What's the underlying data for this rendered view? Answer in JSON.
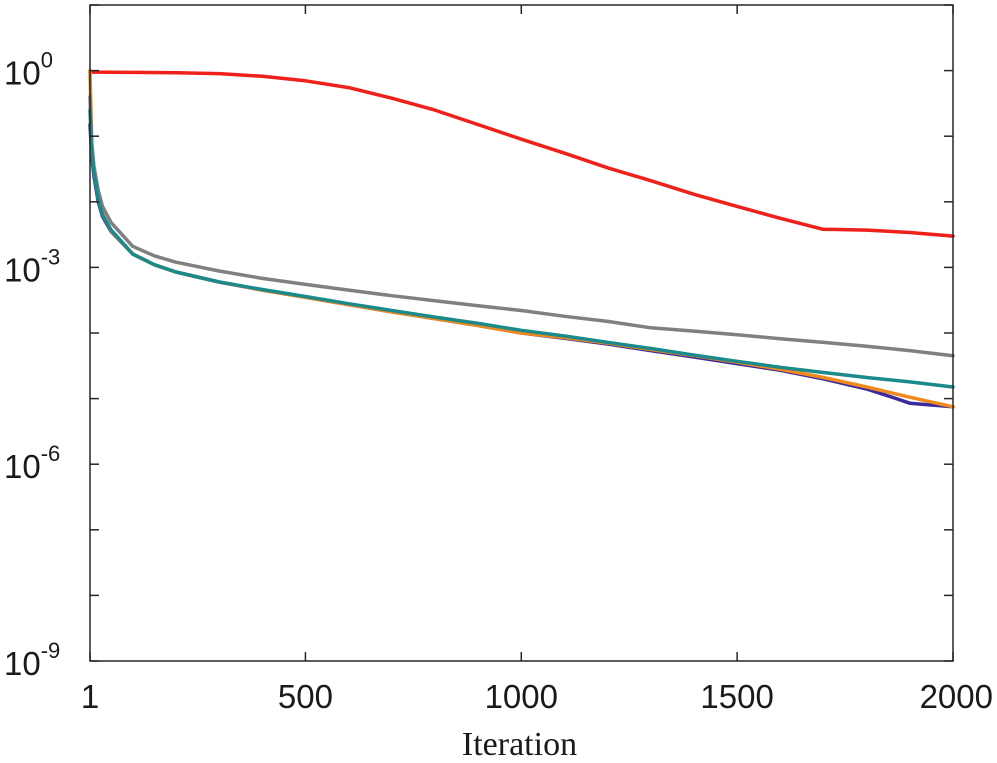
{
  "chart_data": {
    "type": "line",
    "xlabel": "Iteration",
    "ylabel": "",
    "yscale": "log",
    "xlim": [
      1,
      2000
    ],
    "ylim": [
      1e-09,
      10
    ],
    "grid": false,
    "x_ticks": [
      {
        "value": 1,
        "label": "1"
      },
      {
        "value": 500,
        "label": "500"
      },
      {
        "value": 1000,
        "label": "1000"
      },
      {
        "value": 1500,
        "label": "1500"
      },
      {
        "value": 2000,
        "label": "2000"
      }
    ],
    "y_ticks": [
      {
        "value": 1,
        "base": "10",
        "exponent": "0"
      },
      {
        "value": 0.001,
        "base": "10",
        "exponent": "-3"
      },
      {
        "value": 1e-06,
        "base": "10",
        "exponent": "-6"
      },
      {
        "value": 1e-09,
        "base": "10",
        "exponent": "-9"
      }
    ],
    "series": [
      {
        "color": "#f0201a",
        "x": [
          1,
          10,
          100,
          200,
          300,
          400,
          500,
          600,
          700,
          800,
          900,
          1000,
          1100,
          1200,
          1300,
          1400,
          1500,
          1600,
          1700,
          1720,
          1800,
          1900,
          2000
        ],
        "y": [
          0.95,
          0.95,
          0.94,
          0.93,
          0.9,
          0.82,
          0.7,
          0.55,
          0.38,
          0.25,
          0.15,
          0.09,
          0.055,
          0.033,
          0.021,
          0.013,
          0.0085,
          0.0056,
          0.0038,
          0.0038,
          0.0037,
          0.0034,
          0.003
        ]
      },
      {
        "color": "#3a2a9a",
        "x": [
          1,
          5,
          10,
          20,
          30,
          50,
          100,
          150,
          200,
          300,
          400,
          500,
          600,
          700,
          800,
          900,
          1000,
          1100,
          1200,
          1300,
          1400,
          1500,
          1600,
          1700,
          1800,
          1850,
          1900,
          2000
        ],
        "y": [
          0.15,
          0.05,
          0.025,
          0.01,
          0.006,
          0.0035,
          0.0016,
          0.0011,
          0.00085,
          0.0006,
          0.00045,
          0.00035,
          0.00027,
          0.00021,
          0.000165,
          0.00013,
          0.0001,
          8.3e-05,
          6.8e-05,
          5.4e-05,
          4.3e-05,
          3.4e-05,
          2.7e-05,
          2e-05,
          1.4e-05,
          1.1e-05,
          8.5e-06,
          7.5e-06
        ]
      },
      {
        "color": "#f08a1c",
        "x": [
          1,
          5,
          10,
          20,
          30,
          50,
          100,
          150,
          200,
          300,
          400,
          500,
          600,
          700,
          800,
          900,
          1000,
          1100,
          1200,
          1300,
          1400,
          1500,
          1600,
          1700,
          1800,
          1900,
          2000
        ],
        "y": [
          1,
          0.08,
          0.03,
          0.012,
          0.0065,
          0.0036,
          0.0016,
          0.0011,
          0.00085,
          0.0006,
          0.00045,
          0.00035,
          0.00027,
          0.00021,
          0.000165,
          0.00013,
          0.0001,
          8.5e-05,
          7e-05,
          5.6e-05,
          4.5e-05,
          3.6e-05,
          2.8e-05,
          2.1e-05,
          1.5e-05,
          1.05e-05,
          7.5e-06
        ]
      },
      {
        "color": "#808080",
        "x": [
          1,
          5,
          10,
          20,
          30,
          50,
          100,
          150,
          200,
          300,
          400,
          500,
          600,
          700,
          800,
          900,
          1000,
          1100,
          1200,
          1300,
          1400,
          1500,
          1600,
          1700,
          1800,
          1900,
          2000
        ],
        "y": [
          0.4,
          0.08,
          0.035,
          0.015,
          0.0085,
          0.0048,
          0.0021,
          0.0015,
          0.0012,
          0.00088,
          0.00068,
          0.00055,
          0.00045,
          0.00037,
          0.00031,
          0.00026,
          0.00022,
          0.00018,
          0.00015,
          0.00012,
          0.000107,
          9.4e-05,
          8.2e-05,
          7.2e-05,
          6.3e-05,
          5.4e-05,
          4.5e-05
        ]
      },
      {
        "color": "#1a8a8a",
        "x": [
          1,
          5,
          10,
          20,
          30,
          50,
          100,
          150,
          200,
          300,
          400,
          500,
          600,
          700,
          800,
          900,
          1000,
          1100,
          1200,
          1300,
          1400,
          1500,
          1600,
          1700,
          1800,
          1900,
          2000
        ],
        "y": [
          0.25,
          0.06,
          0.028,
          0.011,
          0.0063,
          0.0037,
          0.0016,
          0.0011,
          0.00085,
          0.0006,
          0.00046,
          0.00036,
          0.00028,
          0.00022,
          0.000175,
          0.00014,
          0.00011,
          9e-05,
          7.2e-05,
          5.8e-05,
          4.6e-05,
          3.7e-05,
          3e-05,
          2.5e-05,
          2.1e-05,
          1.8e-05,
          1.5e-05
        ]
      }
    ]
  }
}
